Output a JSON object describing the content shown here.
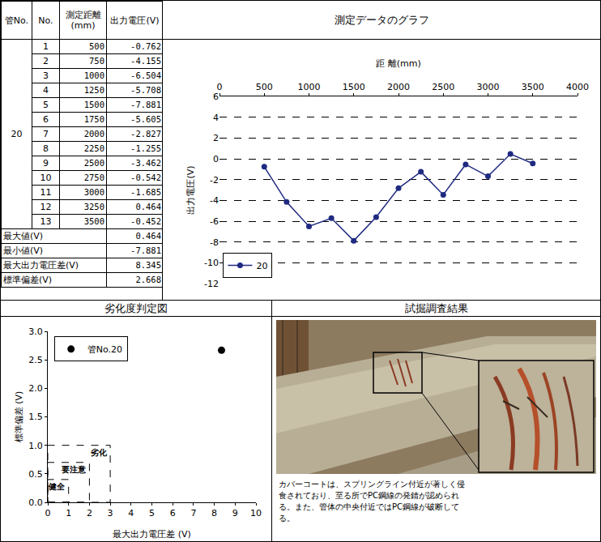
{
  "table": {
    "headers": [
      "管No.",
      "No.",
      "測定距離(mm)",
      "出力電圧(V)"
    ],
    "pipe_no": "20",
    "rows": [
      [
        1,
        500,
        -0.762
      ],
      [
        2,
        750,
        -4.155
      ],
      [
        3,
        1000,
        -6.504
      ],
      [
        4,
        1250,
        -5.708
      ],
      [
        5,
        1500,
        -7.881
      ],
      [
        6,
        1750,
        -5.605
      ],
      [
        7,
        2000,
        -2.827
      ],
      [
        8,
        2250,
        -1.255
      ],
      [
        9,
        2500,
        -3.462
      ],
      [
        10,
        2750,
        -0.542
      ],
      [
        11,
        3000,
        -1.685
      ],
      [
        12,
        3250,
        0.464
      ],
      [
        13,
        3500,
        -0.452
      ]
    ],
    "summary": [
      {
        "label": "最大値(V)",
        "value": 0.464
      },
      {
        "label": "最小値(V)",
        "value": -7.881
      },
      {
        "label": "最大出力電圧差(V)",
        "value": 8.345
      },
      {
        "label": "標準偏差(V)",
        "value": 2.668
      }
    ]
  },
  "section_titles": {
    "graph": "測定データのグラフ",
    "judgment": "劣化度判定図",
    "survey": "試掘調査結果"
  },
  "chart_data": [
    {
      "type": "line",
      "x": [
        500,
        750,
        1000,
        1250,
        1500,
        1750,
        2000,
        2250,
        2500,
        2750,
        3000,
        3250,
        3500
      ],
      "series": [
        {
          "name": "20",
          "color": "#1f2a80",
          "marker": "circle",
          "line_style": "solid",
          "values": [
            -0.762,
            -4.155,
            -6.504,
            -5.708,
            -7.881,
            -5.605,
            -2.827,
            -1.255,
            -3.462,
            -0.542,
            -1.685,
            0.464,
            -0.452
          ]
        }
      ],
      "xlabel": "距 離(mm)",
      "ylabel": "出力電圧(V)",
      "xlim": [
        0,
        4000
      ],
      "xticks": [
        0,
        500,
        1000,
        1500,
        2000,
        2500,
        3000,
        3500,
        4000
      ],
      "ylim": [
        -12,
        6
      ],
      "yticks": [
        -12,
        -10,
        -8,
        -6,
        -4,
        -2,
        0,
        2,
        4,
        6
      ],
      "grid": true,
      "legend": "lower left"
    },
    {
      "type": "scatter",
      "x": [
        8.345
      ],
      "series": [
        {
          "name": "管No.20",
          "color": "#000000",
          "marker": "circle",
          "values": [
            2.668
          ]
        }
      ],
      "xlabel": "最大出力電圧差 (V)",
      "ylabel": "標準偏差 (V)",
      "xlim": [
        0,
        10
      ],
      "xticks": [
        0,
        1,
        2,
        3,
        4,
        5,
        6,
        7,
        8,
        9,
        10
      ],
      "ylim": [
        0,
        3
      ],
      "yticks": [
        {
          "value": 0,
          "label": "0.0"
        },
        0.5,
        {
          "value": 1,
          "label": "1.0"
        },
        1.5,
        {
          "value": 2,
          "label": "2.0"
        },
        2.5,
        {
          "value": 3,
          "label": "3.0"
        }
      ],
      "grid": false,
      "legend": "upper left",
      "zones": [
        {
          "label": "健全",
          "x": 1,
          "y": 0.4
        },
        {
          "label": "要注意",
          "x": 2,
          "y": 0.7
        },
        {
          "label": "劣化",
          "x": 3,
          "y": 1.0
        }
      ]
    }
  ],
  "photo": {
    "caption": "カバーコートは、スプリングライン付近が著しく侵食されており、至る所でPC鋼線の発錆が認められる。また、管体の中央付近ではPC鋼線が破断してる。"
  }
}
